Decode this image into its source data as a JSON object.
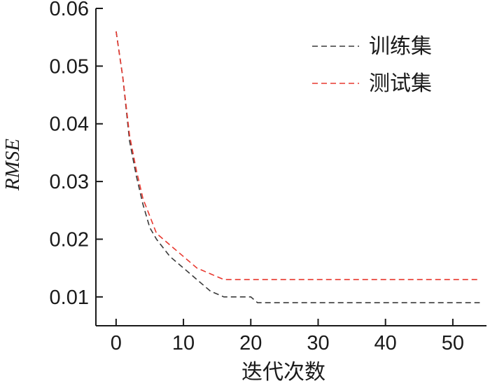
{
  "chart_data": {
    "type": "line",
    "title": "",
    "xlabel": "迭代次数",
    "ylabel": "RMSE",
    "xlim": [
      -3,
      55
    ],
    "ylim": [
      0.005,
      0.06
    ],
    "xticks": [
      0,
      10,
      20,
      30,
      40,
      50
    ],
    "yticks": [
      0.01,
      0.02,
      0.03,
      0.04,
      0.05,
      0.06
    ],
    "x_tick_labels": [
      "0",
      "10",
      "20",
      "30",
      "40",
      "50"
    ],
    "y_tick_labels": [
      "0.01",
      "0.02",
      "0.03",
      "0.04",
      "0.05",
      "0.06"
    ],
    "grid": false,
    "legend_position": "top-right",
    "series": [
      {
        "name": "训练集",
        "color": "#3a3a3a",
        "dash": "dashed",
        "x": [
          0,
          1,
          2,
          3,
          4,
          5,
          6,
          8,
          10,
          12,
          14,
          16,
          20,
          21,
          25,
          30,
          35,
          40,
          45,
          50,
          54
        ],
        "y": [
          0.056,
          0.048,
          0.037,
          0.031,
          0.026,
          0.022,
          0.02,
          0.017,
          0.015,
          0.013,
          0.011,
          0.01,
          0.01,
          0.009,
          0.009,
          0.009,
          0.009,
          0.009,
          0.009,
          0.009,
          0.009
        ]
      },
      {
        "name": "测试集",
        "color": "#e8382f",
        "dash": "dashed",
        "x": [
          0,
          1,
          2,
          3,
          4,
          5,
          6,
          8,
          10,
          12,
          14,
          16,
          20,
          25,
          30,
          35,
          40,
          45,
          50,
          54
        ],
        "y": [
          0.056,
          0.048,
          0.038,
          0.032,
          0.027,
          0.024,
          0.021,
          0.019,
          0.017,
          0.015,
          0.014,
          0.013,
          0.013,
          0.013,
          0.013,
          0.013,
          0.013,
          0.013,
          0.013,
          0.013
        ]
      }
    ]
  }
}
